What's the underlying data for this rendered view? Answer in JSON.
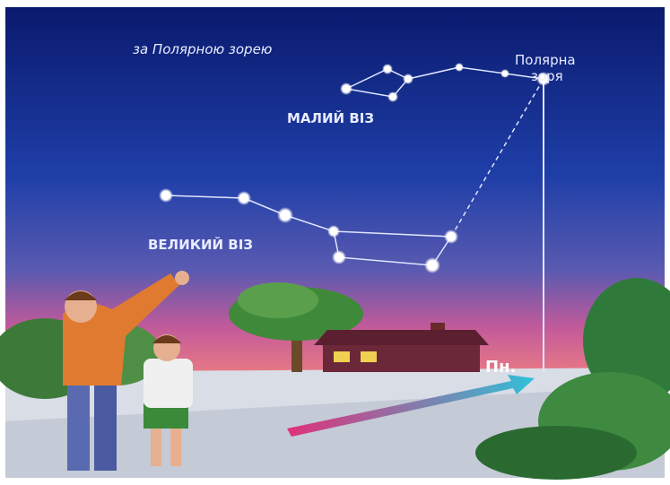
{
  "caption": "за Полярною зорею",
  "labels": {
    "polaris": [
      "Полярна",
      "зоря"
    ],
    "little_dipper": "МАЛИЙ ВІЗ",
    "big_dipper": "ВЕЛИКИЙ ВІЗ",
    "north": "Пн."
  }
}
